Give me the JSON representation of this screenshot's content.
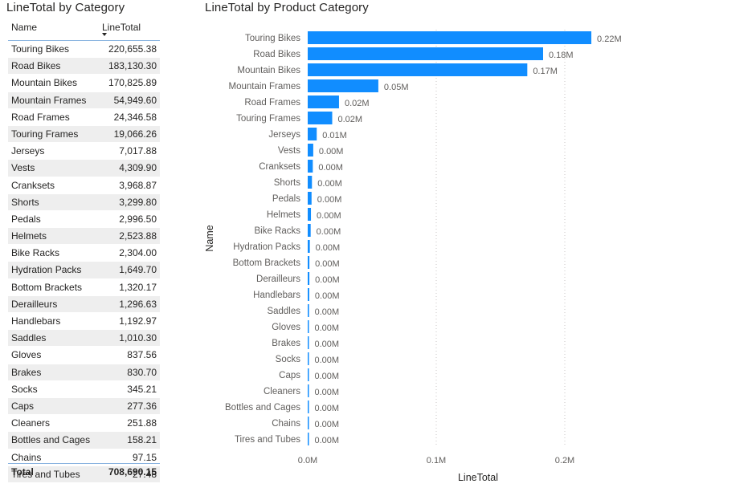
{
  "table": {
    "title": "LineTotal by Category",
    "columns": {
      "name": "Name",
      "line_total": "LineTotal"
    },
    "rows": [
      {
        "name": "Touring Bikes",
        "value": "220,655.38"
      },
      {
        "name": "Road Bikes",
        "value": "183,130.30"
      },
      {
        "name": "Mountain Bikes",
        "value": "170,825.89"
      },
      {
        "name": "Mountain Frames",
        "value": "54,949.60"
      },
      {
        "name": "Road Frames",
        "value": "24,346.58"
      },
      {
        "name": "Touring Frames",
        "value": "19,066.26"
      },
      {
        "name": "Jerseys",
        "value": "7,017.88"
      },
      {
        "name": "Vests",
        "value": "4,309.90"
      },
      {
        "name": "Cranksets",
        "value": "3,968.87"
      },
      {
        "name": "Shorts",
        "value": "3,299.80"
      },
      {
        "name": "Pedals",
        "value": "2,996.50"
      },
      {
        "name": "Helmets",
        "value": "2,523.88"
      },
      {
        "name": "Bike Racks",
        "value": "2,304.00"
      },
      {
        "name": "Hydration Packs",
        "value": "1,649.70"
      },
      {
        "name": "Bottom Brackets",
        "value": "1,320.17"
      },
      {
        "name": "Derailleurs",
        "value": "1,296.63"
      },
      {
        "name": "Handlebars",
        "value": "1,192.97"
      },
      {
        "name": "Saddles",
        "value": "1,010.30"
      },
      {
        "name": "Gloves",
        "value": "837.56"
      },
      {
        "name": "Brakes",
        "value": "830.70"
      },
      {
        "name": "Socks",
        "value": "345.21"
      },
      {
        "name": "Caps",
        "value": "277.36"
      },
      {
        "name": "Cleaners",
        "value": "251.88"
      },
      {
        "name": "Bottles and Cages",
        "value": "158.21"
      },
      {
        "name": "Chains",
        "value": "97.15"
      },
      {
        "name": "Tires and Tubes",
        "value": "27.48"
      }
    ],
    "total_label": "Total",
    "total_value": "708,690.15",
    "sort_icon": "sort-descending-icon"
  },
  "chart_data": {
    "type": "bar",
    "orientation": "horizontal",
    "title": "LineTotal by Product Category",
    "xlabel": "LineTotal",
    "ylabel": "Name",
    "categories": [
      "Touring Bikes",
      "Road Bikes",
      "Mountain Bikes",
      "Mountain Frames",
      "Road Frames",
      "Touring Frames",
      "Jerseys",
      "Vests",
      "Cranksets",
      "Shorts",
      "Pedals",
      "Helmets",
      "Bike Racks",
      "Hydration Packs",
      "Bottom Brackets",
      "Derailleurs",
      "Handlebars",
      "Saddles",
      "Gloves",
      "Brakes",
      "Socks",
      "Caps",
      "Cleaners",
      "Bottles and Cages",
      "Chains",
      "Tires and Tubes"
    ],
    "values": [
      220655.38,
      183130.3,
      170825.89,
      54949.6,
      24346.58,
      19066.26,
      7017.88,
      4309.9,
      3968.87,
      3299.8,
      2996.5,
      2523.88,
      2304.0,
      1649.7,
      1320.17,
      1296.63,
      1192.97,
      1010.3,
      837.56,
      830.7,
      345.21,
      277.36,
      251.88,
      158.21,
      97.15,
      27.48
    ],
    "data_labels": [
      "0.22M",
      "0.18M",
      "0.17M",
      "0.05M",
      "0.02M",
      "0.02M",
      "0.01M",
      "0.00M",
      "0.00M",
      "0.00M",
      "0.00M",
      "0.00M",
      "0.00M",
      "0.00M",
      "0.00M",
      "0.00M",
      "0.00M",
      "0.00M",
      "0.00M",
      "0.00M",
      "0.00M",
      "0.00M",
      "0.00M",
      "0.00M",
      "0.00M",
      "0.00M"
    ],
    "xticks": [
      0,
      100000,
      200000
    ],
    "xtick_labels": [
      "0.0M",
      "0.1M",
      "0.2M"
    ],
    "xlim": [
      0,
      240000
    ],
    "grid": "vertical dotted",
    "bar_color": "#118DFF"
  }
}
